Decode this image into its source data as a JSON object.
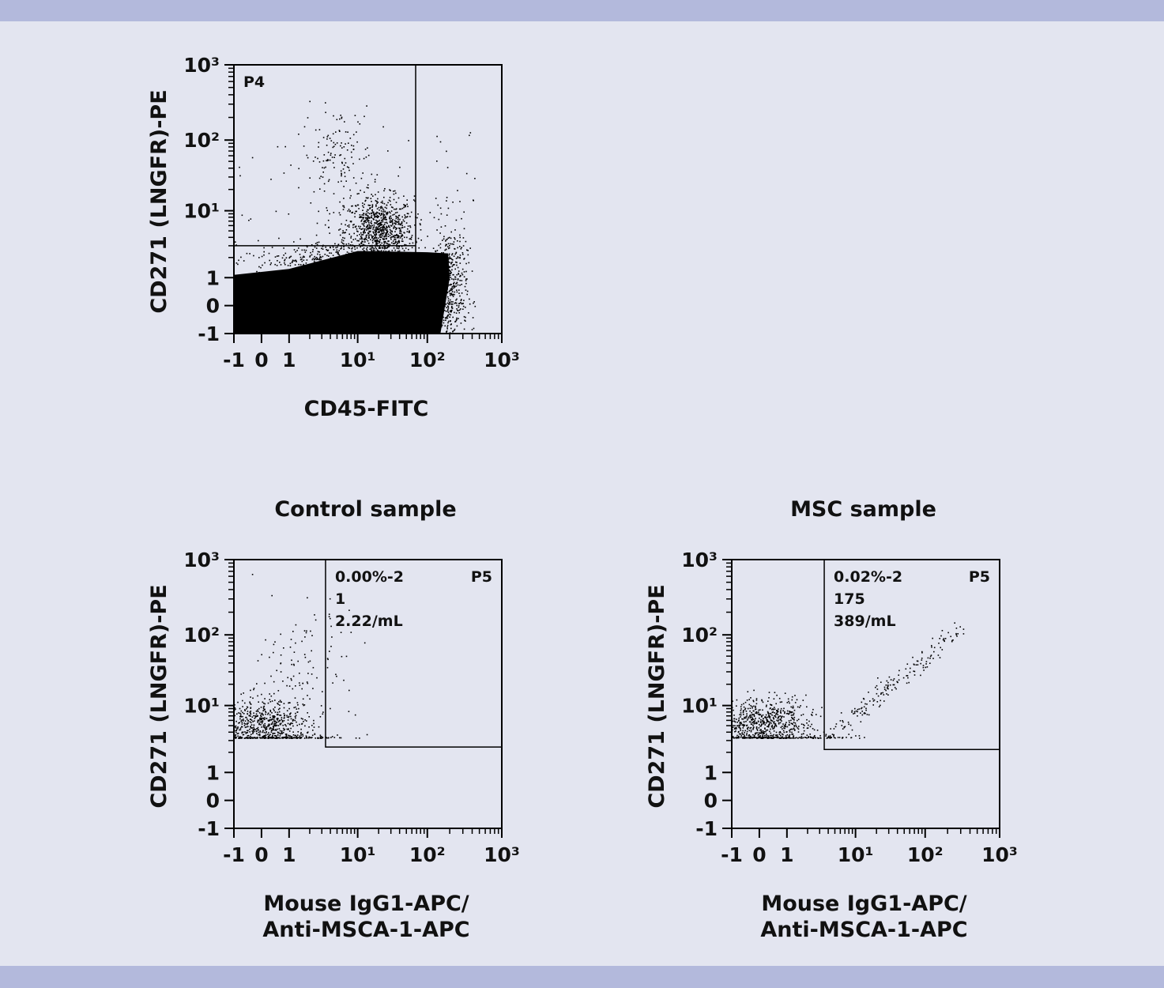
{
  "colors": {
    "background": "#e3e5f0",
    "band": "#b3b9dc",
    "ink": "#000000"
  },
  "chart_data": [
    {
      "type": "scatter",
      "title": "",
      "xlabel": "CD45-FITC",
      "ylabel": "CD271 (LNGFR)-PE",
      "scale": "biexponential",
      "xlim": [
        -1,
        1000
      ],
      "ylim": [
        -1,
        1000
      ],
      "xticks": [
        "-1",
        "0",
        "1",
        "10¹",
        "10²",
        "10³"
      ],
      "yticks": [
        "-1",
        "0",
        "1",
        "10¹",
        "10²",
        "10³"
      ],
      "gate": {
        "name": "P4",
        "x_range": [
          -1,
          68
        ],
        "y_range": [
          3,
          1000
        ]
      },
      "annotations": [],
      "dense_region": [
        [
          -1,
          -1
        ],
        [
          -1,
          1.1
        ],
        [
          1,
          1.35
        ],
        [
          10,
          2.5
        ],
        [
          100,
          2.4
        ],
        [
          190,
          2.3
        ],
        [
          200,
          1
        ],
        [
          150,
          -1
        ]
      ],
      "populations": [
        {
          "center": [
            20,
            5
          ],
          "spread_decades": [
            0.25,
            0.25
          ],
          "count": 900
        },
        {
          "center": [
            5,
            60
          ],
          "spread_decades": [
            0.25,
            0.35
          ],
          "count": 140
        },
        {
          "center": [
            200,
            0.5
          ],
          "spread_decades": [
            0.12,
            0.5
          ],
          "count": 500
        },
        {
          "center": [
            5,
            1.8
          ],
          "spread_decades": [
            0.6,
            0.15
          ],
          "count": 500
        }
      ]
    },
    {
      "type": "scatter",
      "title": "Control sample",
      "xlabel": [
        "Mouse IgG1-APC/",
        "Anti-MSCA-1-APC"
      ],
      "ylabel": "CD271 (LNGFR)-PE",
      "scale": "biexponential",
      "xlim": [
        -1,
        1000
      ],
      "ylim": [
        -1,
        1000
      ],
      "xticks": [
        "-1",
        "0",
        "1",
        "10¹",
        "10²",
        "10³"
      ],
      "yticks": [
        "-1",
        "0",
        "1",
        "10¹",
        "10²",
        "10³"
      ],
      "gate": {
        "name": "P5",
        "x_range": [
          3.4,
          1000
        ],
        "y_range": [
          2.4,
          1000
        ]
      },
      "annotations": [
        "0.00%-2",
        "1",
        "2.22/mL"
      ],
      "populations": [
        {
          "center": [
            0,
            5
          ],
          "spread_decades": [
            0.35,
            0.2
          ],
          "count": 700
        },
        {
          "center": [
            1.5,
            40
          ],
          "spread_decades": [
            0.3,
            0.4
          ],
          "count": 110
        },
        {
          "center": [
            1.5,
            3.4
          ],
          "spread_decades": [
            0.4,
            0.03
          ],
          "count": 80
        }
      ]
    },
    {
      "type": "scatter",
      "title": "MSC sample",
      "xlabel": [
        "Mouse IgG1-APC/",
        "Anti-MSCA-1-APC"
      ],
      "ylabel": "CD271 (LNGFR)-PE",
      "scale": "biexponential",
      "xlim": [
        -1,
        1000
      ],
      "ylim": [
        -1,
        1000
      ],
      "xticks": [
        "-1",
        "0",
        "1",
        "10¹",
        "10²",
        "10³"
      ],
      "yticks": [
        "-1",
        "0",
        "1",
        "10¹",
        "10²",
        "10³"
      ],
      "gate": {
        "name": "P5",
        "x_range": [
          3.5,
          1000
        ],
        "y_range": [
          2.2,
          1000
        ]
      },
      "annotations": [
        "0.02%-2",
        "175",
        "389/mL"
      ],
      "populations": [
        {
          "center": [
            0,
            5
          ],
          "spread_decades": [
            0.35,
            0.2
          ],
          "count": 800
        },
        {
          "center": [
            3,
            3.4
          ],
          "spread_decades": [
            0.3,
            0.03
          ],
          "count": 60
        },
        {
          "diagonal": [
            [
              5,
              4
            ],
            [
              300,
              120
            ]
          ],
          "spread_decades": [
            0.12,
            0.15
          ],
          "count": 175
        }
      ]
    }
  ]
}
